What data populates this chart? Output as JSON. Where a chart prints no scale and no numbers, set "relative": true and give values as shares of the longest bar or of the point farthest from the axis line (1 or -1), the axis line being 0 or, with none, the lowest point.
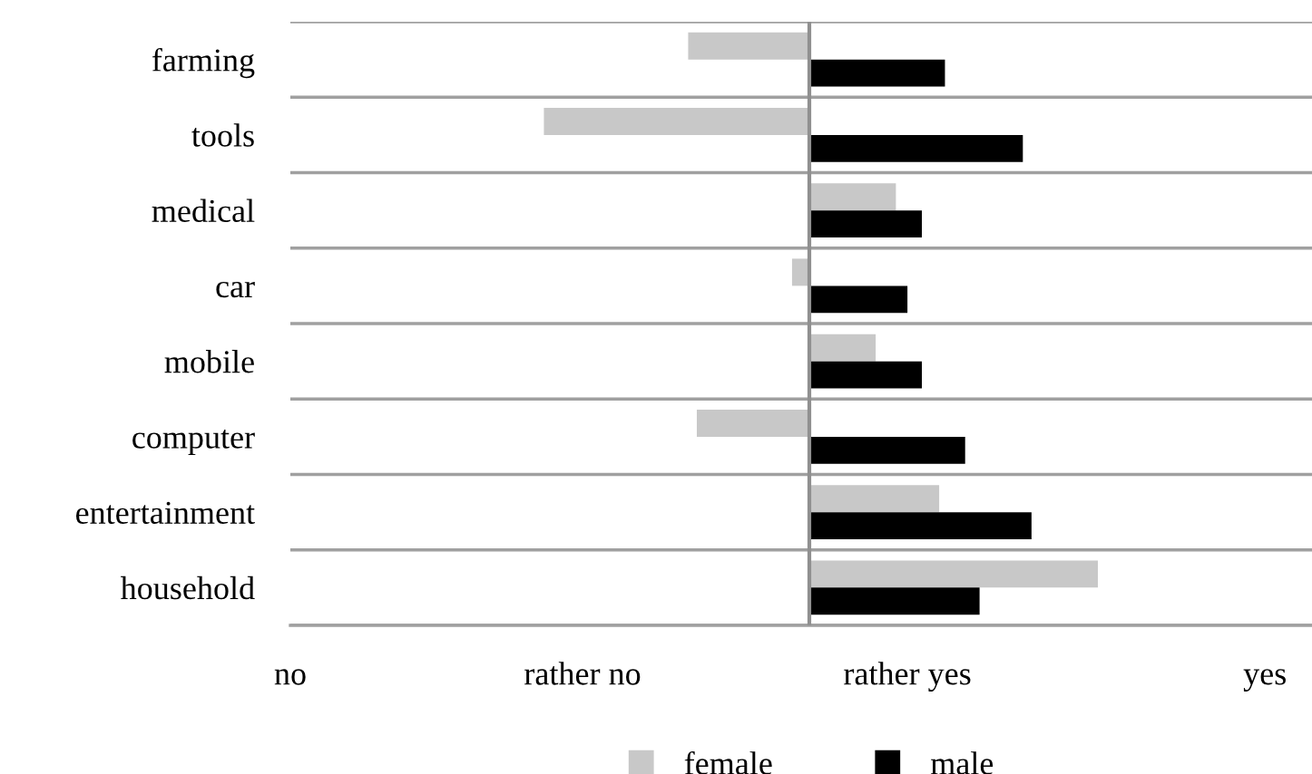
{
  "chart_data": {
    "type": "bar",
    "orientation": "horizontal",
    "relative": true,
    "categories": [
      "farming",
      "tools",
      "medical",
      "car",
      "mobile",
      "computer",
      "entertainment",
      "household"
    ],
    "series": [
      {
        "name": "female",
        "color": "#c8c8c8",
        "values": [
          -0.42,
          -0.92,
          0.3,
          -0.06,
          0.23,
          -0.39,
          0.45,
          1
        ]
      },
      {
        "name": "male",
        "color": "#000000",
        "values": [
          0.47,
          0.74,
          0.39,
          0.34,
          0.39,
          0.54,
          0.77,
          0.59
        ]
      }
    ],
    "annotations": [
      "no",
      "rather no",
      "rather yes",
      "yes"
    ],
    "grid": "y",
    "legend": "bottom"
  }
}
